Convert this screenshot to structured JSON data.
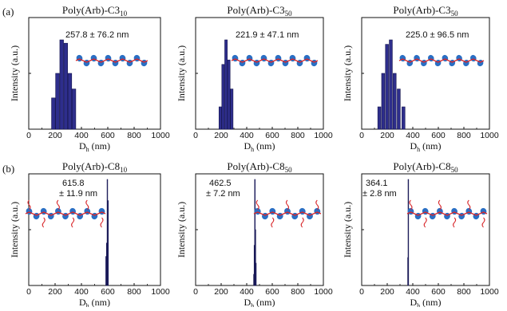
{
  "figure": {
    "row_labels": [
      "(a)",
      "(b)"
    ]
  },
  "colors": {
    "bar_fill": "#2e2e8c",
    "bar_edge": "#15154e",
    "axis": "#111111",
    "chain_bead": "#2a6fc4",
    "chain_backbone": "#d8262a"
  },
  "chart_data": [
    {
      "type": "bar",
      "title_main": "Poly(Arb)-C3",
      "title_sub": "10",
      "annotation": "257.8 ± 76.2 nm",
      "xlabel_main": "D",
      "xlabel_sub": "h",
      "xlabel_unit": "(nm)",
      "ylabel": "Intensity (a.u.)",
      "xlim": [
        0,
        1000
      ],
      "xticks": [
        0,
        200,
        400,
        600,
        800,
        1000
      ],
      "ylim": [
        0,
        1
      ],
      "x": [
        187,
        218,
        250,
        281,
        312,
        343
      ],
      "values": [
        0.28,
        0.5,
        0.8,
        0.77,
        0.5,
        0.36
      ],
      "bar_width": 28,
      "icon": "chain-short-arms-icon"
    },
    {
      "type": "bar",
      "title_main": "Poly(Arb)-C3",
      "title_sub": "50",
      "annotation": "221.9 ± 47.1 nm",
      "xlabel_main": "D",
      "xlabel_sub": "h",
      "xlabel_unit": "(nm)",
      "ylabel": "Intensity (a.u.)",
      "xlim": [
        0,
        1000
      ],
      "xticks": [
        0,
        200,
        400,
        600,
        800,
        1000
      ],
      "ylim": [
        0,
        1
      ],
      "x": [
        193,
        215,
        238,
        260,
        283
      ],
      "values": [
        0.2,
        0.58,
        0.8,
        0.62,
        0.36
      ],
      "bar_width": 20,
      "icon": "chain-short-arms-icon"
    },
    {
      "type": "bar",
      "title_main": "Poly(Arb)-C3",
      "title_sub": "50",
      "annotation": "225.0 ± 96.5 nm",
      "xlabel_main": "D",
      "xlabel_sub": "h",
      "xlabel_unit": "(nm)",
      "ylabel": "Intensity (a.u.)",
      "xlim": [
        0,
        1000
      ],
      "xticks": [
        0,
        200,
        400,
        600,
        800,
        1000
      ],
      "ylim": [
        0,
        1
      ],
      "x": [
        138,
        168,
        198,
        228,
        258,
        290,
        327
      ],
      "values": [
        0.2,
        0.5,
        0.76,
        0.8,
        0.5,
        0.36,
        0.2
      ],
      "bar_width": 24,
      "icon": "chain-short-arms-icon"
    },
    {
      "type": "bar",
      "title_main": "Poly(Arb)-C8",
      "title_sub": "10",
      "annotation": "615.8",
      "annotation2": "± 11.9 nm",
      "xlabel_main": "D",
      "xlabel_sub": "h",
      "xlabel_unit": "(nm)",
      "ylabel": "Intensity (a.u.)",
      "xlim": [
        0,
        1000
      ],
      "xticks": [
        0,
        200,
        400,
        600,
        800,
        1000
      ],
      "ylim": [
        0,
        1
      ],
      "x": [
        586,
        591,
        596,
        601
      ],
      "values": [
        0.26,
        0.38,
        0.95,
        0.76
      ],
      "bar_width": 3,
      "icon": "chain-long-arms-icon"
    },
    {
      "type": "bar",
      "title_main": "Poly(Arb)-C8",
      "title_sub": "50",
      "annotation": "462.5",
      "annotation2": "± 7.2 nm",
      "xlabel_main": "D",
      "xlabel_sub": "h",
      "xlabel_unit": "(nm)",
      "ylabel": "Intensity (a.u.)",
      "xlim": [
        0,
        1000
      ],
      "xticks": [
        0,
        200,
        400,
        600,
        800,
        1000
      ],
      "ylim": [
        0,
        1
      ],
      "x": [
        455,
        459,
        463,
        467,
        471
      ],
      "values": [
        0.1,
        0.36,
        0.95,
        0.5,
        0.2
      ],
      "bar_width": 2.5,
      "icon": "chain-long-arms-icon"
    },
    {
      "type": "bar",
      "title_main": "Poly(Arb)-C8",
      "title_sub": "50",
      "annotation": "364.1",
      "annotation2": "± 2.8 nm",
      "xlabel_main": "D",
      "xlabel_sub": "h",
      "xlabel_unit": "(nm)",
      "ylabel": "Intensity (a.u.)",
      "xlim": [
        0,
        1000
      ],
      "xticks": [
        0,
        200,
        400,
        600,
        800,
        1000
      ],
      "ylim": [
        0,
        1
      ],
      "x": [
        361,
        364
      ],
      "values": [
        0.25,
        0.95
      ],
      "bar_width": 2.5,
      "icon": "chain-long-arms-icon"
    }
  ]
}
